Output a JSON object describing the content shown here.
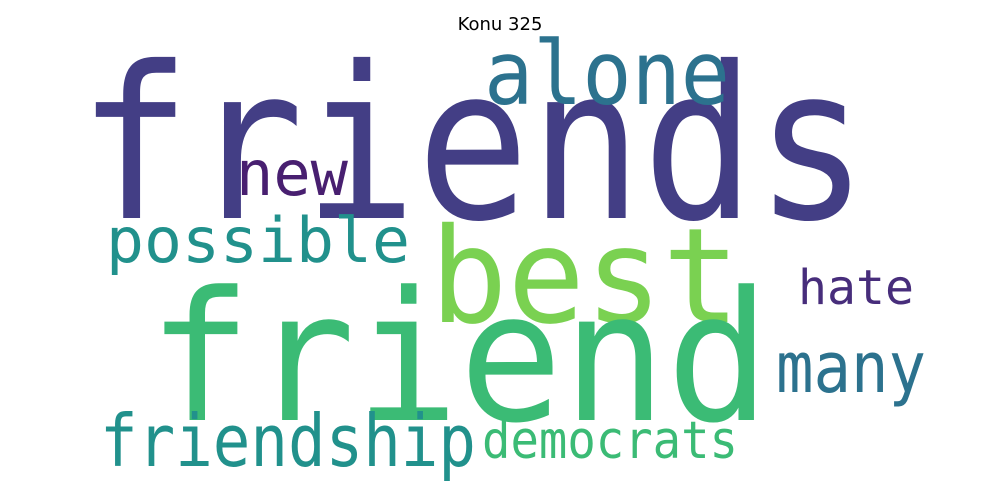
{
  "title": "Konu 325",
  "words": [
    {
      "text": "friends",
      "color": "#433e85"
    },
    {
      "text": "friend",
      "color": "#3bbb75"
    },
    {
      "text": "best",
      "color": "#7ad151"
    },
    {
      "text": "alone",
      "color": "#2c728e"
    },
    {
      "text": "possible",
      "color": "#21918c"
    },
    {
      "text": "new",
      "color": "#481f70"
    },
    {
      "text": "hate",
      "color": "#472d7b"
    },
    {
      "text": "many",
      "color": "#2c728e"
    },
    {
      "text": "friendship",
      "color": "#21918c"
    },
    {
      "text": "democrats",
      "color": "#3bbb75"
    }
  ]
}
